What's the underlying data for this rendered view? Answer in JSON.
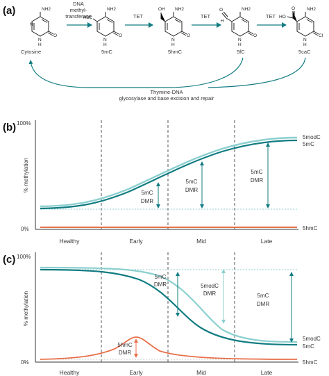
{
  "panel_a": {
    "label": "(a)",
    "molecules": [
      {
        "name": "Cytosine",
        "sub": "",
        "nh2": "NH2"
      },
      {
        "name": "5mC",
        "sub": "H3C",
        "nh2": "NH2"
      },
      {
        "name": "5hmC",
        "sub": "OH",
        "nh2": "NH2"
      },
      {
        "name": "5fC",
        "sub": "O",
        "nh2": "NH2"
      },
      {
        "name": "5caC",
        "sub": "HO",
        "nh2": "NH2"
      }
    ],
    "ring_atoms": {
      "n": "N",
      "h": "H",
      "o": "O",
      "c": "C",
      "cl": "Cl"
    },
    "arrows": [
      {
        "label_lines": [
          "DNA",
          "methyl-",
          "transferase"
        ]
      },
      {
        "label_lines": [
          "TET"
        ]
      },
      {
        "label_lines": [
          "TET"
        ]
      },
      {
        "label_lines": [
          "TET"
        ]
      }
    ],
    "repair_text_1": "Thymine-DNA",
    "repair_text_2": "glycosylase and base excision and repair"
  },
  "panel_b": {
    "label": "(b)",
    "ylabel": "% methylation",
    "y_top": "100%",
    "y_bottom": "0%",
    "stages": [
      "Healthy",
      "Early",
      "Mid",
      "Late"
    ],
    "series_labels": [
      "5modC",
      "5mC",
      "5hmC"
    ],
    "dmr_label_1": "5mC",
    "dmr_label_2": "DMR"
  },
  "panel_c": {
    "label": "(c)",
    "ylabel": "% methylation",
    "y_top": "100%",
    "y_bottom": "0%",
    "stages": [
      "Healthy",
      "Early",
      "Mid",
      "Late"
    ],
    "series_labels": [
      "5modC",
      "5mC",
      "5hmC"
    ],
    "dmr_5mc_1": "5mC",
    "dmr_5mc_2": "DMR",
    "dmr_5modc_1": "5modC",
    "dmr_5modc_2": "DMR",
    "dmr_5mc_late_1": "5mC",
    "dmr_5mc_late_2": "DMR",
    "dmr_5hmc_1": "5hmC",
    "dmr_5hmc_2": "DMR"
  },
  "colors": {
    "teal_dark": "#117c82",
    "teal_light": "#8ccfcf",
    "orange": "#e8704a",
    "dash": "#444444"
  }
}
